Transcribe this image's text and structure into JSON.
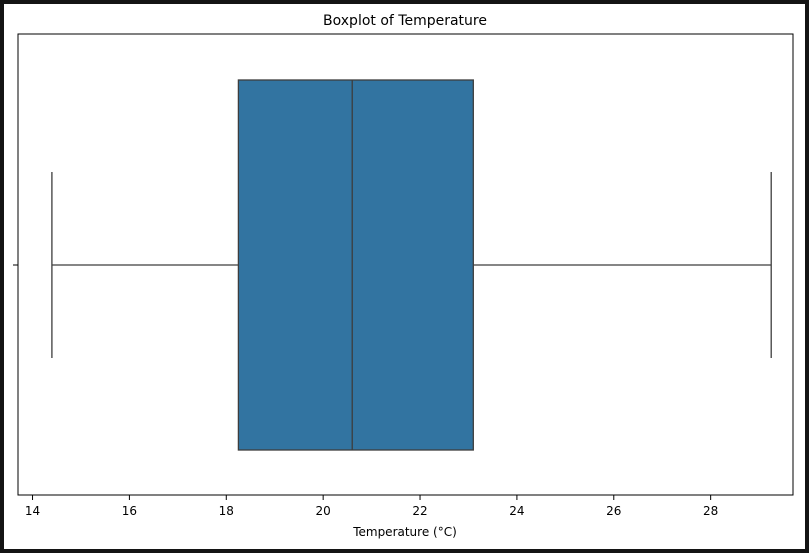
{
  "chart_data": {
    "type": "boxplot",
    "title": "Boxplot of Temperature",
    "xlabel": "Temperature (°C)",
    "ylabel": "",
    "xlim": [
      13.7,
      29.7
    ],
    "x_ticks": [
      14,
      16,
      18,
      20,
      22,
      24,
      26,
      28
    ],
    "x_tick_labels": [
      "14",
      "16",
      "18",
      "20",
      "22",
      "24",
      "26",
      "28"
    ],
    "grid": false,
    "legend": false,
    "orientation": "horizontal",
    "box": {
      "min": 14.4,
      "q1": 18.25,
      "median": 20.6,
      "q3": 23.1,
      "max": 29.25
    },
    "colors": {
      "box_fill": "#3274a1",
      "line": "#3d3d3d"
    }
  }
}
